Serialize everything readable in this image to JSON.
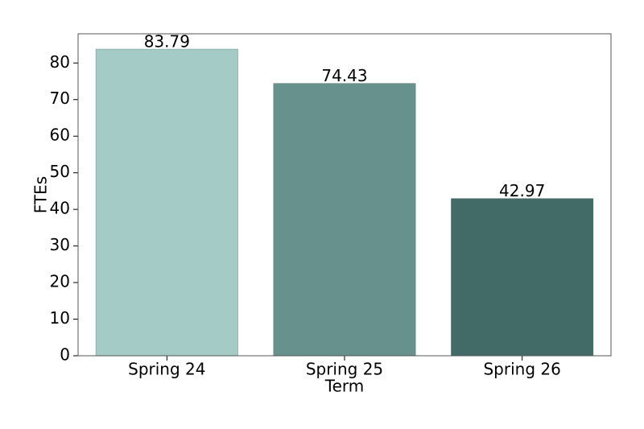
{
  "chart_data": {
    "type": "bar",
    "categories": [
      "Spring 24",
      "Spring 25",
      "Spring 26"
    ],
    "values": [
      83.79,
      74.43,
      42.97
    ],
    "colors": [
      "#a5cbc7",
      "#66918c",
      "#426a66"
    ],
    "xlabel": "Term",
    "ylabel": "FTEs",
    "ylim": [
      0,
      87.98
    ],
    "yticks": [
      0,
      10,
      20,
      30,
      40,
      50,
      60,
      70,
      80
    ],
    "grid": false
  }
}
